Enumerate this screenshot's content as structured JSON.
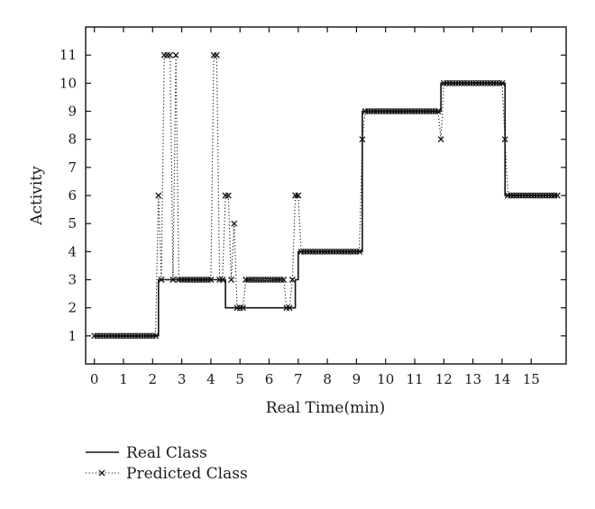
{
  "chart_data": {
    "type": "line",
    "xlabel": "Real Time(min)",
    "ylabel": "Activity",
    "xlim": [
      -0.3,
      16.2
    ],
    "ylim": [
      0,
      12
    ],
    "x_ticks": [
      0,
      1,
      2,
      3,
      4,
      5,
      6,
      7,
      8,
      9,
      10,
      11,
      12,
      13,
      14,
      15
    ],
    "y_ticks": [
      1,
      2,
      3,
      4,
      5,
      6,
      7,
      8,
      9,
      10,
      11
    ],
    "grid": false,
    "legend_position": "bottom-left",
    "series": [
      {
        "name": "Real Class",
        "style": "solid",
        "color": "#111111",
        "x": [
          0,
          2.2,
          2.2,
          4.5,
          4.5,
          6.9,
          6.9,
          7.0,
          7.0,
          9.2,
          9.2,
          11.9,
          11.9,
          14.1,
          14.1,
          15.9
        ],
        "y": [
          1,
          1,
          3,
          3,
          2,
          2,
          3,
          3,
          4,
          4,
          9,
          9,
          10,
          10,
          6,
          6
        ]
      },
      {
        "name": "Predicted Class",
        "style": "dotted",
        "marker": "x",
        "color": "#111111",
        "x": [
          0,
          0.1,
          0.2,
          0.3,
          0.4,
          0.5,
          0.6,
          0.7,
          0.8,
          0.9,
          1.0,
          1.1,
          1.2,
          1.3,
          1.4,
          1.5,
          1.6,
          1.7,
          1.8,
          1.9,
          2.0,
          2.1,
          2.2,
          2.3,
          2.4,
          2.5,
          2.6,
          2.7,
          2.8,
          2.9,
          3.0,
          3.1,
          3.2,
          3.3,
          3.4,
          3.5,
          3.6,
          3.7,
          3.8,
          3.9,
          4.0,
          4.1,
          4.2,
          4.3,
          4.4,
          4.5,
          4.6,
          4.7,
          4.8,
          4.9,
          5.0,
          5.1,
          5.2,
          5.3,
          5.4,
          5.5,
          5.6,
          5.7,
          5.8,
          5.9,
          6.0,
          6.1,
          6.2,
          6.3,
          6.4,
          6.5,
          6.6,
          6.7,
          6.8,
          6.9,
          7.0,
          7.1,
          7.2,
          7.3,
          7.4,
          7.5,
          7.6,
          7.7,
          7.8,
          7.9,
          8.0,
          8.1,
          8.2,
          8.3,
          8.4,
          8.5,
          8.6,
          8.7,
          8.8,
          8.9,
          9.0,
          9.1,
          9.2,
          9.3,
          9.4,
          9.5,
          9.6,
          9.7,
          9.8,
          9.9,
          10.0,
          10.1,
          10.2,
          10.3,
          10.4,
          10.5,
          10.6,
          10.7,
          10.8,
          10.9,
          11.0,
          11.1,
          11.2,
          11.3,
          11.4,
          11.5,
          11.6,
          11.7,
          11.8,
          11.9,
          12.0,
          12.1,
          12.2,
          12.3,
          12.4,
          12.5,
          12.6,
          12.7,
          12.8,
          12.9,
          13.0,
          13.1,
          13.2,
          13.3,
          13.4,
          13.5,
          13.6,
          13.7,
          13.8,
          13.9,
          14.0,
          14.1,
          14.2,
          14.3,
          14.4,
          14.5,
          14.6,
          14.7,
          14.8,
          14.9,
          15.0,
          15.1,
          15.2,
          15.3,
          15.4,
          15.5,
          15.6,
          15.7,
          15.8,
          15.9
        ],
        "y": [
          1,
          1,
          1,
          1,
          1,
          1,
          1,
          1,
          1,
          1,
          1,
          1,
          1,
          1,
          1,
          1,
          1,
          1,
          1,
          1,
          1,
          1,
          6,
          3,
          11,
          11,
          11,
          3,
          11,
          3,
          3,
          3,
          3,
          3,
          3,
          3,
          3,
          3,
          3,
          3,
          3,
          11,
          11,
          3,
          3,
          6,
          6,
          3,
          5,
          2,
          2,
          2,
          3,
          3,
          3,
          3,
          3,
          3,
          3,
          3,
          3,
          3,
          3,
          3,
          3,
          3,
          2,
          2,
          3,
          6,
          6,
          4,
          4,
          4,
          4,
          4,
          4,
          4,
          4,
          4,
          4,
          4,
          4,
          4,
          4,
          4,
          4,
          4,
          4,
          4,
          4,
          4,
          8,
          9,
          9,
          9,
          9,
          9,
          9,
          9,
          9,
          9,
          9,
          9,
          9,
          9,
          9,
          9,
          9,
          9,
          9,
          9,
          9,
          9,
          9,
          9,
          9,
          9,
          9,
          8,
          10,
          10,
          10,
          10,
          10,
          10,
          10,
          10,
          10,
          10,
          10,
          10,
          10,
          10,
          10,
          10,
          10,
          10,
          10,
          10,
          10,
          8,
          6,
          6,
          6,
          6,
          6,
          6,
          6,
          6,
          6,
          6,
          6,
          6,
          6,
          6,
          6,
          6,
          6,
          6
        ]
      }
    ]
  }
}
